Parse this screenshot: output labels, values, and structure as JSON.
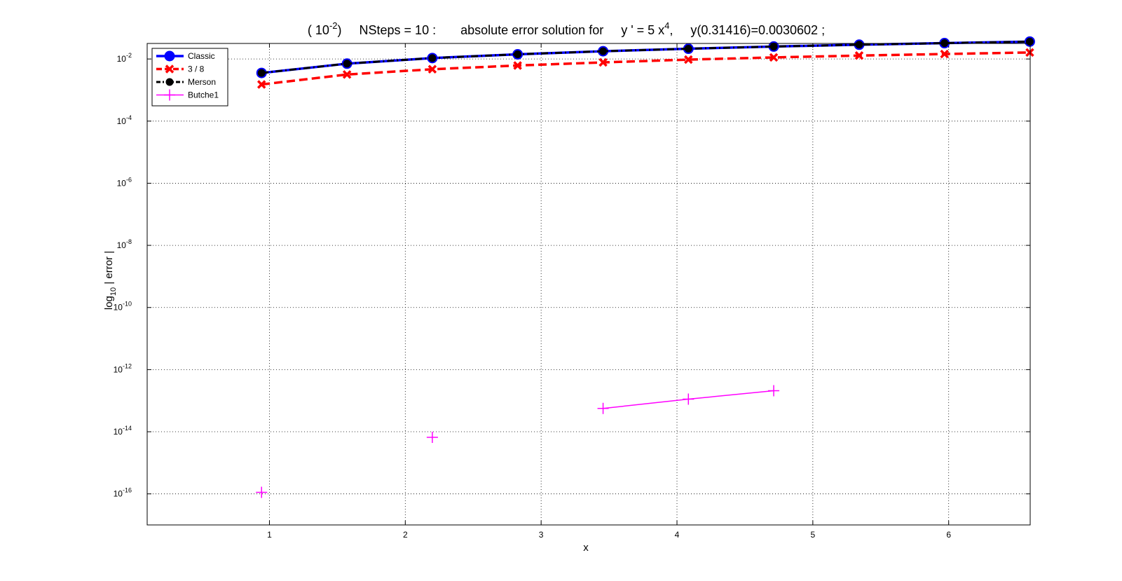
{
  "chart_data": {
    "type": "line",
    "title": {
      "prefix": "( 10",
      "prefix_exp": "-2",
      "steps": ")     NSteps = 10 :       absolute error solution for     y ' = 5 x",
      "eq_exp": "4",
      "ic": ",     y(0.31416)=0.0030602 ;"
    },
    "xlabel": "x",
    "ylabel": {
      "base": "log",
      "sub": "10",
      "rest": " | error |"
    },
    "xlim": [
      0.1,
      6.6
    ],
    "ylim_exp": [
      -17,
      -1.5
    ],
    "y_scale": "log",
    "grid": true,
    "legend_position": "top-left",
    "x_ticks": [
      "1",
      "2",
      "3",
      "4",
      "5",
      "6"
    ],
    "y_ticks": [
      {
        "base": "10",
        "exp": "-2"
      },
      {
        "base": "10",
        "exp": "-4"
      },
      {
        "base": "10",
        "exp": "-6"
      },
      {
        "base": "10",
        "exp": "-8"
      },
      {
        "base": "10",
        "exp": "-10"
      },
      {
        "base": "10",
        "exp": "-12"
      },
      {
        "base": "10",
        "exp": "-14"
      },
      {
        "base": "10",
        "exp": "-16"
      }
    ],
    "x": [
      0.942,
      1.571,
      2.199,
      2.827,
      3.456,
      4.084,
      4.712,
      5.341,
      5.969,
      6.597
    ],
    "series": [
      {
        "name": "Classic",
        "color": "#0000ff",
        "style": "solid-circle",
        "log10_values": [
          -2.45,
          -2.15,
          -1.97,
          -1.85,
          -1.75,
          -1.67,
          -1.6,
          -1.54,
          -1.49,
          -1.44
        ],
        "visible_points": [
          0,
          1,
          2,
          3,
          4,
          5,
          6,
          7,
          8,
          9
        ]
      },
      {
        "name": " 3 / 8",
        "color": "#ff0000",
        "style": "dashed-x",
        "log10_values": [
          -2.82,
          -2.5,
          -2.33,
          -2.21,
          -2.11,
          -2.02,
          -1.95,
          -1.89,
          -1.84,
          -1.79
        ],
        "visible_points": [
          0,
          1,
          2,
          3,
          4,
          5,
          6,
          7,
          8,
          9
        ]
      },
      {
        "name": "Merson",
        "color": "#000000",
        "style": "dashdot-dot",
        "log10_values": [
          -2.45,
          -2.15,
          -1.97,
          -1.85,
          -1.75,
          -1.67,
          -1.6,
          -1.54,
          -1.49,
          -1.44
        ],
        "visible_points": [
          0,
          1,
          2,
          3,
          4,
          5,
          6,
          7,
          8,
          9
        ]
      },
      {
        "name": "Butche1",
        "color": "#ff00ff",
        "style": "solid-plus",
        "log10_values": [
          -15.95,
          null,
          -14.18,
          null,
          -13.25,
          -12.95,
          -12.68,
          null,
          null,
          null
        ],
        "visible_points": [
          0,
          2,
          4,
          5,
          6
        ]
      }
    ]
  }
}
